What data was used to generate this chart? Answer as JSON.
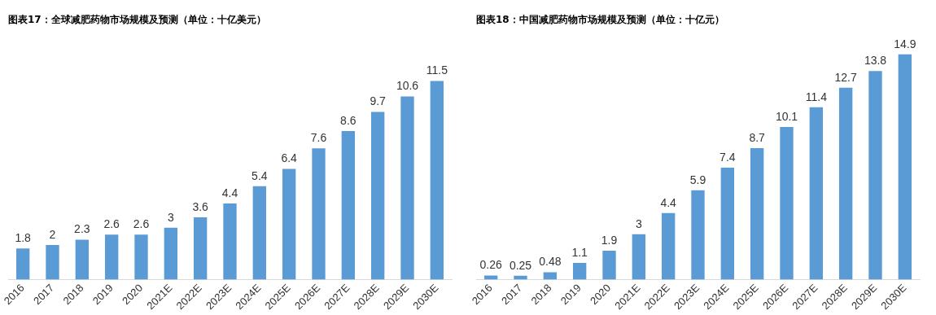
{
  "chart_data": [
    {
      "type": "bar",
      "title": "图表17：全球减肥药物市场规模及预测（单位：十亿美元）",
      "categories": [
        "2016",
        "2017",
        "2018",
        "2019",
        "2020",
        "2021E",
        "2022E",
        "2023E",
        "2024E",
        "2025E",
        "2026E",
        "2027E",
        "2028E",
        "2029E",
        "2030E"
      ],
      "values": [
        1.8,
        2,
        2.3,
        2.6,
        2.6,
        3,
        3.6,
        4.4,
        5.4,
        6.4,
        7.6,
        8.6,
        9.7,
        10.6,
        11.5
      ],
      "color": "#5b9bd5",
      "data_labels": true,
      "tick_labels": "x",
      "grid": false,
      "legend": false
    },
    {
      "type": "bar",
      "title": "图表18：中国减肥药物市场规模及预测（单位：十亿元）",
      "categories": [
        "2016",
        "2017",
        "2018",
        "2019",
        "2020",
        "2021E",
        "2022E",
        "2023E",
        "2024E",
        "2025E",
        "2026E",
        "2027E",
        "2028E",
        "2029E",
        "2030E"
      ],
      "values": [
        0.26,
        0.25,
        0.48,
        1.1,
        1.9,
        3,
        4.4,
        5.9,
        7.4,
        8.7,
        10.1,
        11.4,
        12.7,
        13.8,
        14.9
      ],
      "color": "#5b9bd5",
      "data_labels": true,
      "tick_labels": "x",
      "grid": false,
      "legend": false
    }
  ]
}
